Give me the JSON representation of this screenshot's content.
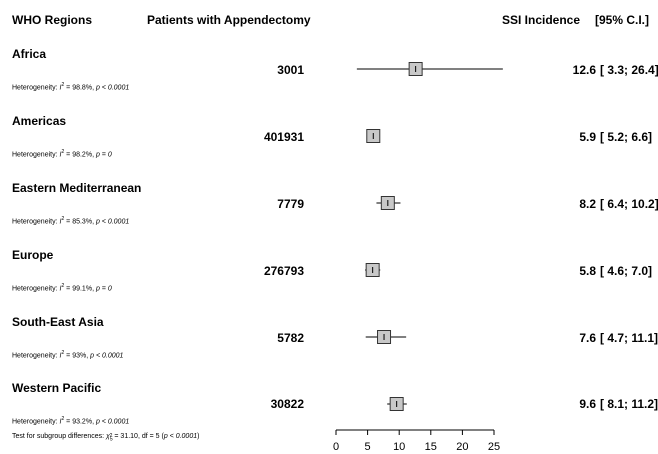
{
  "headers": {
    "region": "WHO Regions",
    "patients": "Patients with Appendectomy",
    "incidence": "SSI Incidence",
    "ci": "[95% C.I.]"
  },
  "rows": [
    {
      "region": "Africa",
      "patients": "3001",
      "estimate": "12.6",
      "ci": "[ 3.3; 26.4]",
      "het_i2": "98.8%",
      "het_p": "p < 0.0001"
    },
    {
      "region": "Americas",
      "patients": "401931",
      "estimate": "5.9",
      "ci": "[ 5.2;  6.6]",
      "het_i2": "98.2%",
      "het_p": "p = 0"
    },
    {
      "region": "Eastern Mediterranean",
      "patients": "7779",
      "estimate": "8.2",
      "ci": "[ 6.4; 10.2]",
      "het_i2": "85.3%",
      "het_p": "p < 0.0001"
    },
    {
      "region": "Europe",
      "patients": "276793",
      "estimate": "5.8",
      "ci": "[ 4.6;  7.0]",
      "het_i2": "99.1%",
      "het_p": "p = 0"
    },
    {
      "region": "South-East Asia",
      "patients": "5782",
      "estimate": "7.6",
      "ci": "[ 4.7; 11.1]",
      "het_i2": "93%",
      "het_p": "p < 0.0001"
    },
    {
      "region": "Western Pacific",
      "patients": "30822",
      "estimate": "9.6",
      "ci": "[ 8.1; 11.2]",
      "het_i2": "93.2%",
      "het_p": "p < 0.0001"
    }
  ],
  "heterogeneity_label": "Heterogeneity: ",
  "footer": {
    "prefix": "Test for subgroup differences: ",
    "chi2": "31.10",
    "df_text": ", df = 5 (",
    "p_text": "p < 0.0001",
    "suffix": ")"
  },
  "chart_data": {
    "type": "forest",
    "categories": [
      "Africa",
      "Americas",
      "Eastern Mediterranean",
      "Europe",
      "South-East Asia",
      "Western Pacific"
    ],
    "values": [
      12.6,
      5.9,
      8.2,
      5.8,
      7.6,
      9.6
    ],
    "ci_low": [
      3.3,
      5.2,
      6.4,
      4.6,
      4.7,
      8.1
    ],
    "ci_high": [
      26.4,
      6.6,
      10.2,
      7.0,
      11.1,
      11.2
    ],
    "xlim": [
      0,
      25
    ],
    "xticks": [
      0,
      5,
      10,
      15,
      20,
      25
    ],
    "marker_color": "#c8c8c8",
    "xlabel": "",
    "ylabel": "",
    "title": ""
  }
}
